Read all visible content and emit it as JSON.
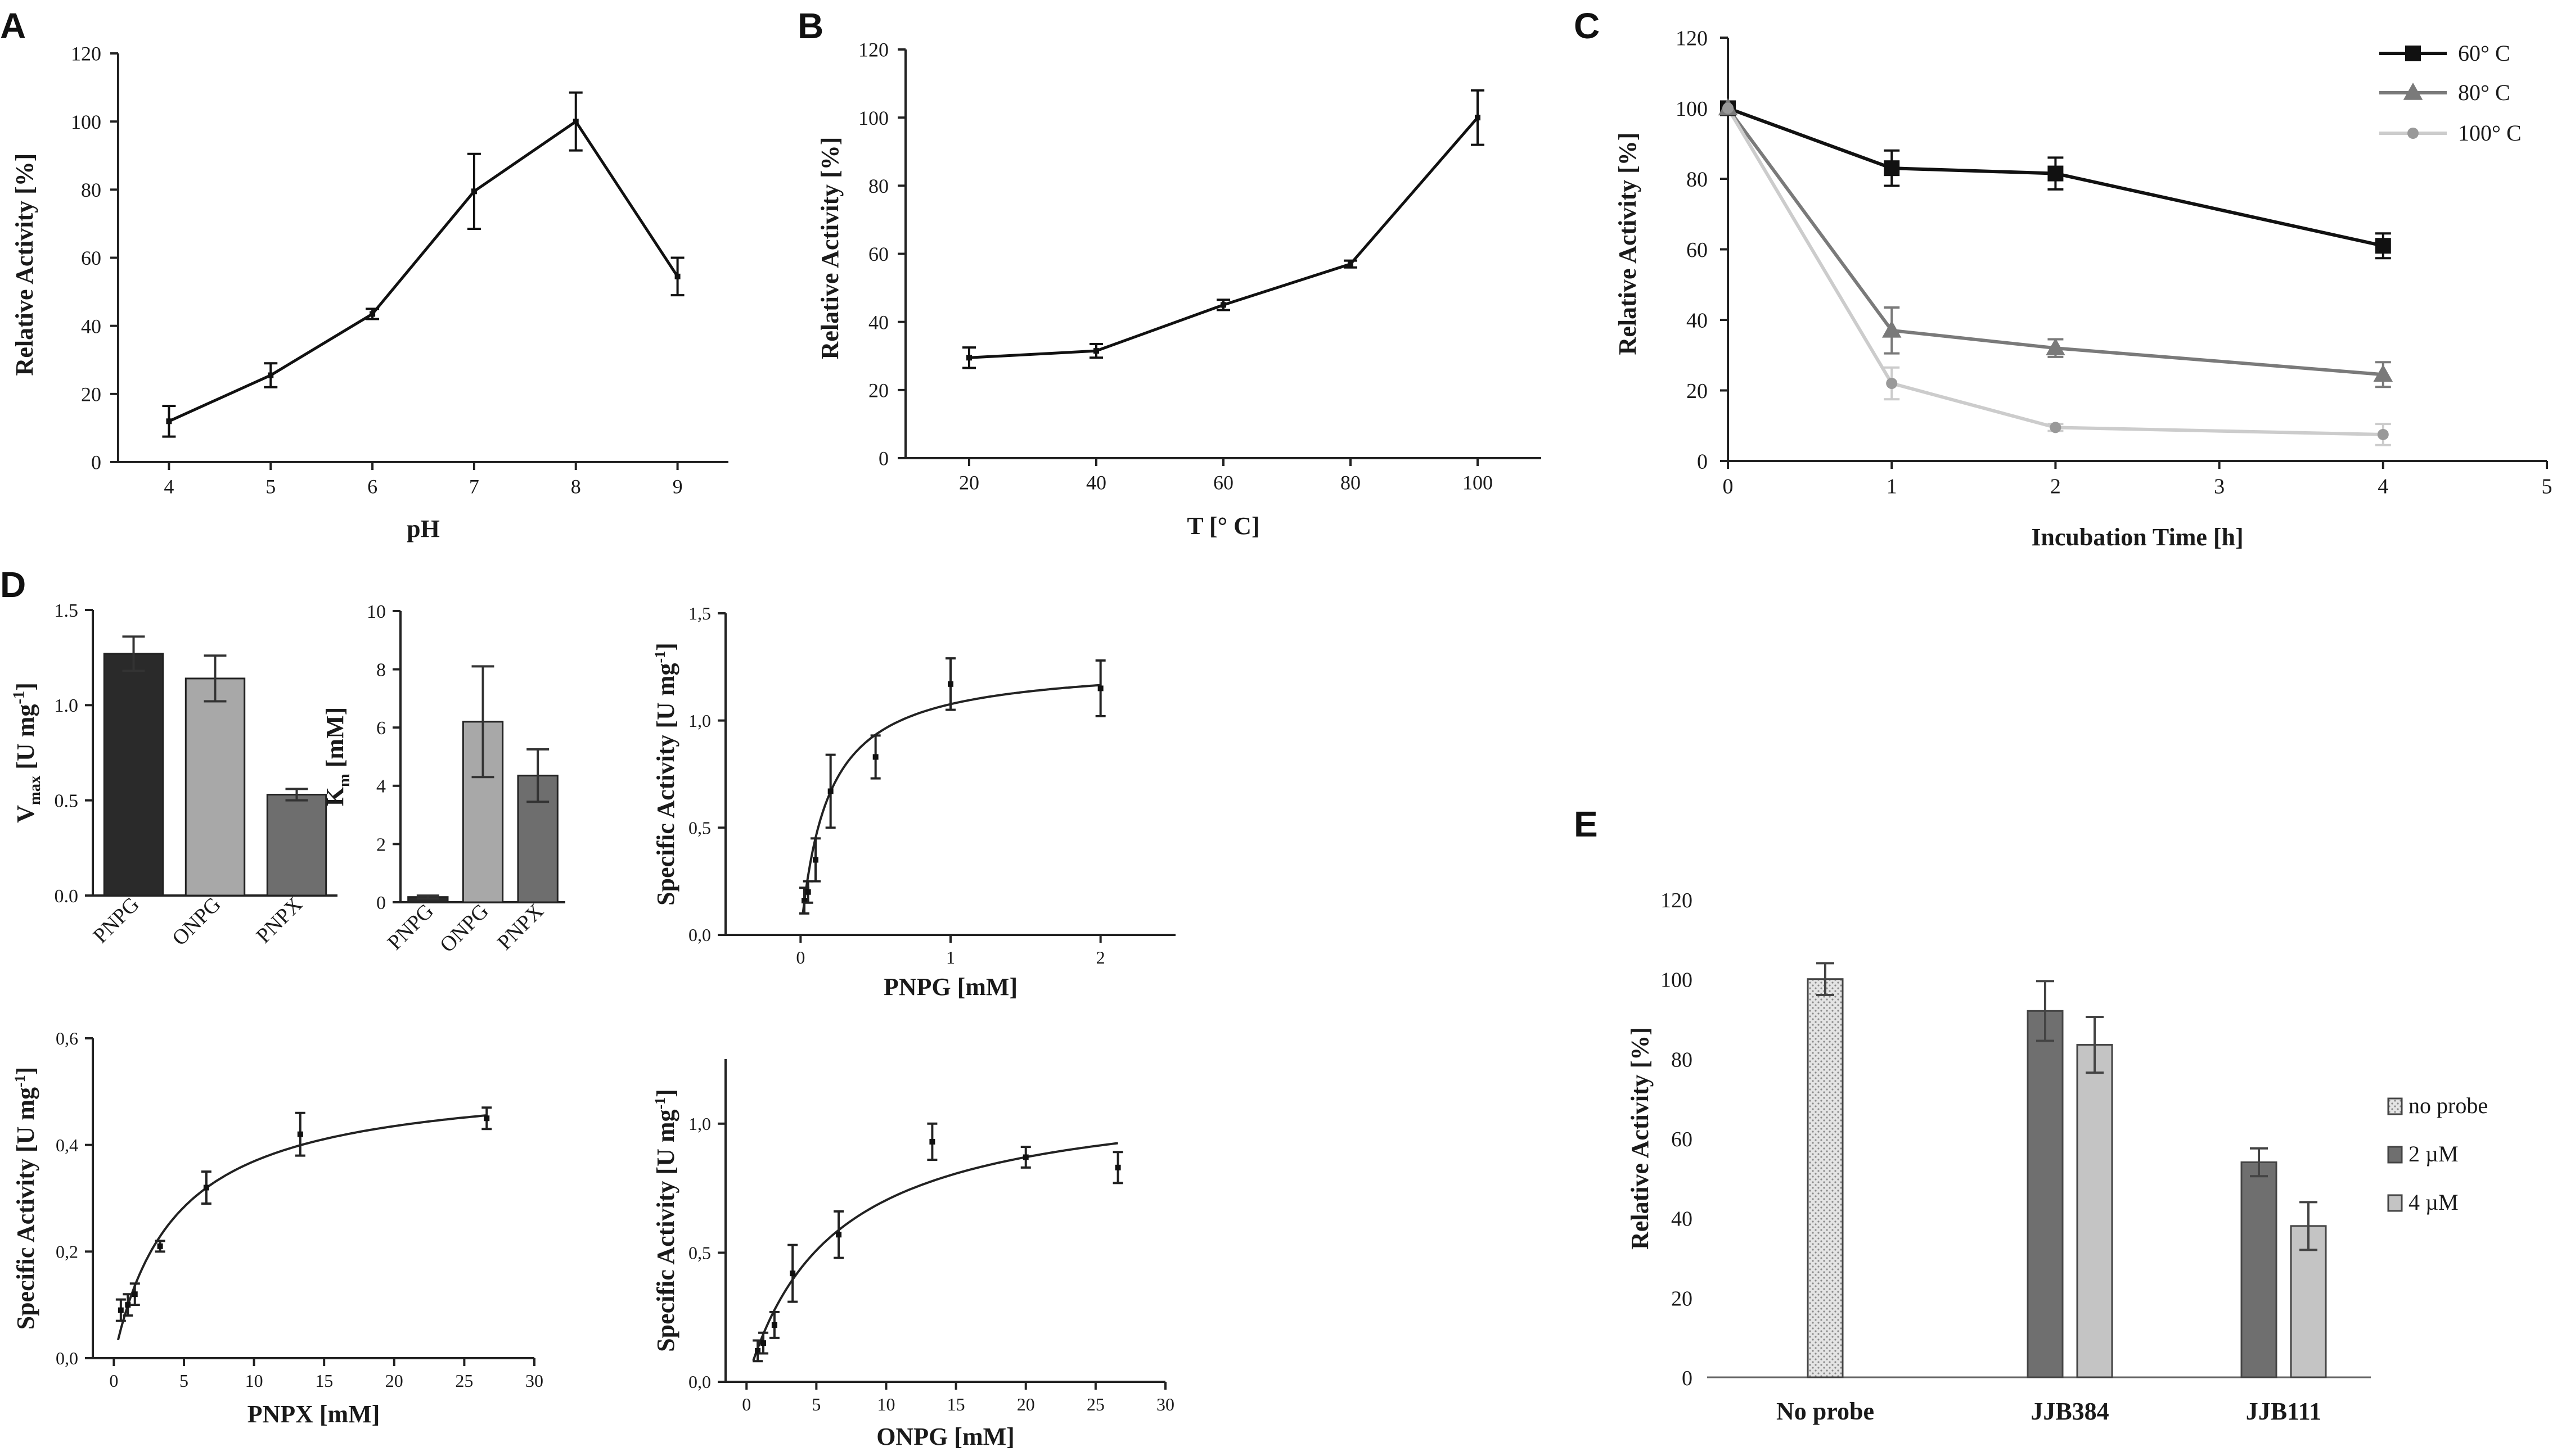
{
  "panels": {
    "A": "A",
    "B": "B",
    "C": "C",
    "D": "D",
    "E": "E"
  },
  "colors": {
    "black": "#111111",
    "dark": "#333333",
    "mid": "#7a7a7a",
    "light": "#b9b9b9",
    "lighter": "#cccccc",
    "bar1": "#2a2a2a",
    "bar2": "#a8a8a8",
    "bar3": "#6e6e6e"
  },
  "chart_data": [
    {
      "id": "A",
      "type": "line",
      "xlabel": "pH",
      "ylabel": "Relative Activity [%]",
      "x": [
        4,
        5,
        6,
        7,
        8,
        9
      ],
      "y": [
        12,
        25.5,
        43.5,
        79.5,
        100,
        54.5
      ],
      "err": [
        4.5,
        3.5,
        1.5,
        11,
        8.5,
        5.5
      ],
      "xlim": [
        3.5,
        9.5
      ],
      "ylim": [
        0,
        120
      ],
      "xticks": [
        4,
        5,
        6,
        7,
        8,
        9
      ],
      "yticks": [
        0,
        20,
        40,
        60,
        80,
        100,
        120
      ],
      "xtick_labels": [
        "4",
        "5",
        "6",
        "7",
        "8",
        "9"
      ],
      "ytick_labels": [
        "0",
        "20",
        "40",
        "60",
        "80",
        "100",
        "120"
      ]
    },
    {
      "id": "B",
      "type": "line",
      "xlabel": "T [° C]",
      "ylabel": "Relative Activity [%]",
      "x": [
        20,
        40,
        60,
        80,
        100
      ],
      "y": [
        29.5,
        31.5,
        45,
        57,
        100
      ],
      "err": [
        3,
        2,
        1.5,
        1,
        8
      ],
      "xlim": [
        10,
        110
      ],
      "ylim": [
        0,
        120
      ],
      "xticks": [
        20,
        40,
        60,
        80,
        100
      ],
      "yticks": [
        0,
        20,
        40,
        60,
        80,
        100,
        120
      ],
      "xtick_labels": [
        "20",
        "40",
        "60",
        "80",
        "100"
      ],
      "ytick_labels": [
        "0",
        "20",
        "40",
        "60",
        "80",
        "100",
        "120"
      ]
    },
    {
      "id": "C",
      "type": "line",
      "xlabel": "Incubation Time [h]",
      "ylabel": "Relative Activity [%]",
      "xlim": [
        0,
        5
      ],
      "ylim": [
        0,
        120
      ],
      "xticks": [
        0,
        1,
        2,
        3,
        4,
        5
      ],
      "yticks": [
        0,
        20,
        40,
        60,
        80,
        100,
        120
      ],
      "xtick_labels": [
        "0",
        "1",
        "2",
        "3",
        "4",
        "5"
      ],
      "ytick_labels": [
        "0",
        "20",
        "40",
        "60",
        "80",
        "100",
        "120"
      ],
      "legend_position": "top-right",
      "series": [
        {
          "name": "60° C",
          "marker": "square",
          "x": [
            0,
            1,
            2,
            4
          ],
          "y": [
            100,
            83,
            81.5,
            61
          ],
          "err": [
            0,
            5,
            4.5,
            3.5
          ]
        },
        {
          "name": "80° C",
          "marker": "triangle",
          "x": [
            0,
            1,
            2,
            4
          ],
          "y": [
            100,
            37,
            32,
            24.5
          ],
          "err": [
            0,
            6.5,
            2.5,
            3.5
          ]
        },
        {
          "name": "100° C",
          "marker": "circle",
          "x": [
            0,
            1,
            2,
            4
          ],
          "y": [
            100,
            22,
            9.5,
            7.5
          ],
          "err": [
            0,
            4.5,
            1,
            3
          ]
        }
      ]
    },
    {
      "id": "D1",
      "type": "bar",
      "categories": [
        "PNPG",
        "ONPG",
        "PNPX"
      ],
      "values": [
        1.27,
        1.14,
        0.53
      ],
      "err": [
        0.09,
        0.12,
        0.03
      ],
      "ylabel": "Vmax [U mg-1]",
      "ylabel_main": "V",
      "ylabel_sub": "max",
      "ylabel_rest": " [U mg",
      "ylabel_sup": "-1",
      "ylabel_end": "]",
      "ylim": [
        0,
        1.5
      ],
      "yticks": [
        0,
        0.5,
        1,
        1.5
      ],
      "ytick_labels": [
        "0.0",
        "0.5",
        "1.0",
        "1.5"
      ]
    },
    {
      "id": "D2",
      "type": "bar",
      "categories": [
        "PNPG",
        "ONPG",
        "PNPX"
      ],
      "values": [
        0.18,
        6.2,
        4.35
      ],
      "err": [
        0.05,
        1.9,
        0.9
      ],
      "ylabel": "Km [mM]",
      "ylabel_main": "K",
      "ylabel_sub": "m",
      "ylabel_rest": " [mM]",
      "ylim": [
        0,
        10
      ],
      "yticks": [
        0,
        2,
        4,
        6,
        8,
        10
      ],
      "ytick_labels": [
        "0",
        "2",
        "4",
        "6",
        "8",
        "10"
      ]
    },
    {
      "id": "D3",
      "type": "scatter",
      "xlabel": "PNPG [mM]",
      "ylabel_main": "Specific Activity [U mg",
      "ylabel_sup": "-1",
      "ylabel_end": "]",
      "x": [
        0.025,
        0.05,
        0.1,
        0.2,
        0.5,
        1,
        2
      ],
      "y": [
        0.16,
        0.2,
        0.35,
        0.67,
        0.83,
        1.17,
        1.15
      ],
      "err": [
        0.06,
        0.05,
        0.1,
        0.17,
        0.1,
        0.12,
        0.13
      ],
      "fit": {
        "vmax": 1.27,
        "km": 0.18
      },
      "xlim": [
        -0.5,
        2.5
      ],
      "ylim": [
        0,
        1.5
      ],
      "xticks": [
        0,
        1,
        2
      ],
      "yticks": [
        0,
        0.5,
        1,
        1.5
      ],
      "xtick_labels": [
        "0",
        "1",
        "2"
      ],
      "ytick_labels": [
        "0,0",
        "0,5",
        "1,0",
        "1,5"
      ]
    },
    {
      "id": "D4",
      "type": "scatter",
      "xlabel": "PNPX [mM]",
      "ylabel_main": "Specific Activity [U mg",
      "ylabel_sup": "-1",
      "ylabel_end": "]",
      "x": [
        0.5,
        1,
        1.5,
        3.3,
        6.6,
        13.3,
        26.6
      ],
      "y": [
        0.09,
        0.1,
        0.12,
        0.21,
        0.32,
        0.42,
        0.45
      ],
      "err": [
        0.02,
        0.02,
        0.02,
        0.01,
        0.03,
        0.04,
        0.02
      ],
      "fit": {
        "vmax": 0.53,
        "km": 4.35
      },
      "xlim": [
        -1.5,
        30
      ],
      "ylim": [
        0,
        0.6
      ],
      "xticks": [
        0,
        5,
        10,
        15,
        20,
        25,
        30
      ],
      "yticks": [
        0,
        0.2,
        0.4,
        0.6
      ],
      "xtick_labels": [
        "0",
        "5",
        "10",
        "15",
        "20",
        "25",
        "30"
      ],
      "ytick_labels": [
        "0,0",
        "0,2",
        "0,4",
        "0,6"
      ]
    },
    {
      "id": "D5",
      "type": "scatter",
      "xlabel": "ONPG [mM]",
      "ylabel_main": "Specific Activity [U mg",
      "ylabel_sup": "-1",
      "ylabel_end": "]",
      "x": [
        0.8,
        1.2,
        2,
        3.3,
        6.6,
        13.3,
        20,
        26.6
      ],
      "y": [
        0.12,
        0.15,
        0.22,
        0.42,
        0.57,
        0.93,
        0.87,
        0.83
      ],
      "err": [
        0.04,
        0.04,
        0.05,
        0.11,
        0.09,
        0.07,
        0.04,
        0.06
      ],
      "fit": {
        "vmax": 1.14,
        "km": 6.2
      },
      "xlim": [
        -1.5,
        30
      ],
      "ylim": [
        0,
        1.25
      ],
      "xticks": [
        0,
        5,
        10,
        15,
        20,
        25,
        30
      ],
      "yticks": [
        0,
        0.5,
        1
      ],
      "xtick_labels": [
        "0",
        "5",
        "10",
        "15",
        "20",
        "25",
        "30"
      ],
      "ytick_labels": [
        "0,0",
        "0,5",
        "1,0"
      ]
    },
    {
      "id": "E",
      "type": "bar",
      "ylabel": "Relative Activity [%]",
      "categories": [
        "No probe",
        "JJB384",
        "JJB111"
      ],
      "legend_position": "right",
      "series": [
        {
          "name": "no probe",
          "values": [
            100,
            null,
            null
          ],
          "err": [
            4,
            null,
            null
          ]
        },
        {
          "name": "2 µM",
          "values": [
            null,
            92,
            54
          ],
          "err": [
            null,
            7.5,
            3.5
          ]
        },
        {
          "name": "4 µM",
          "values": [
            null,
            83.5,
            38
          ],
          "err": [
            null,
            7,
            6
          ]
        }
      ],
      "ylim": [
        0,
        120
      ],
      "yticks": [
        0,
        20,
        40,
        60,
        80,
        100,
        120
      ],
      "ytick_labels": [
        "0",
        "20",
        "40",
        "60",
        "80",
        "100",
        "120"
      ]
    }
  ]
}
